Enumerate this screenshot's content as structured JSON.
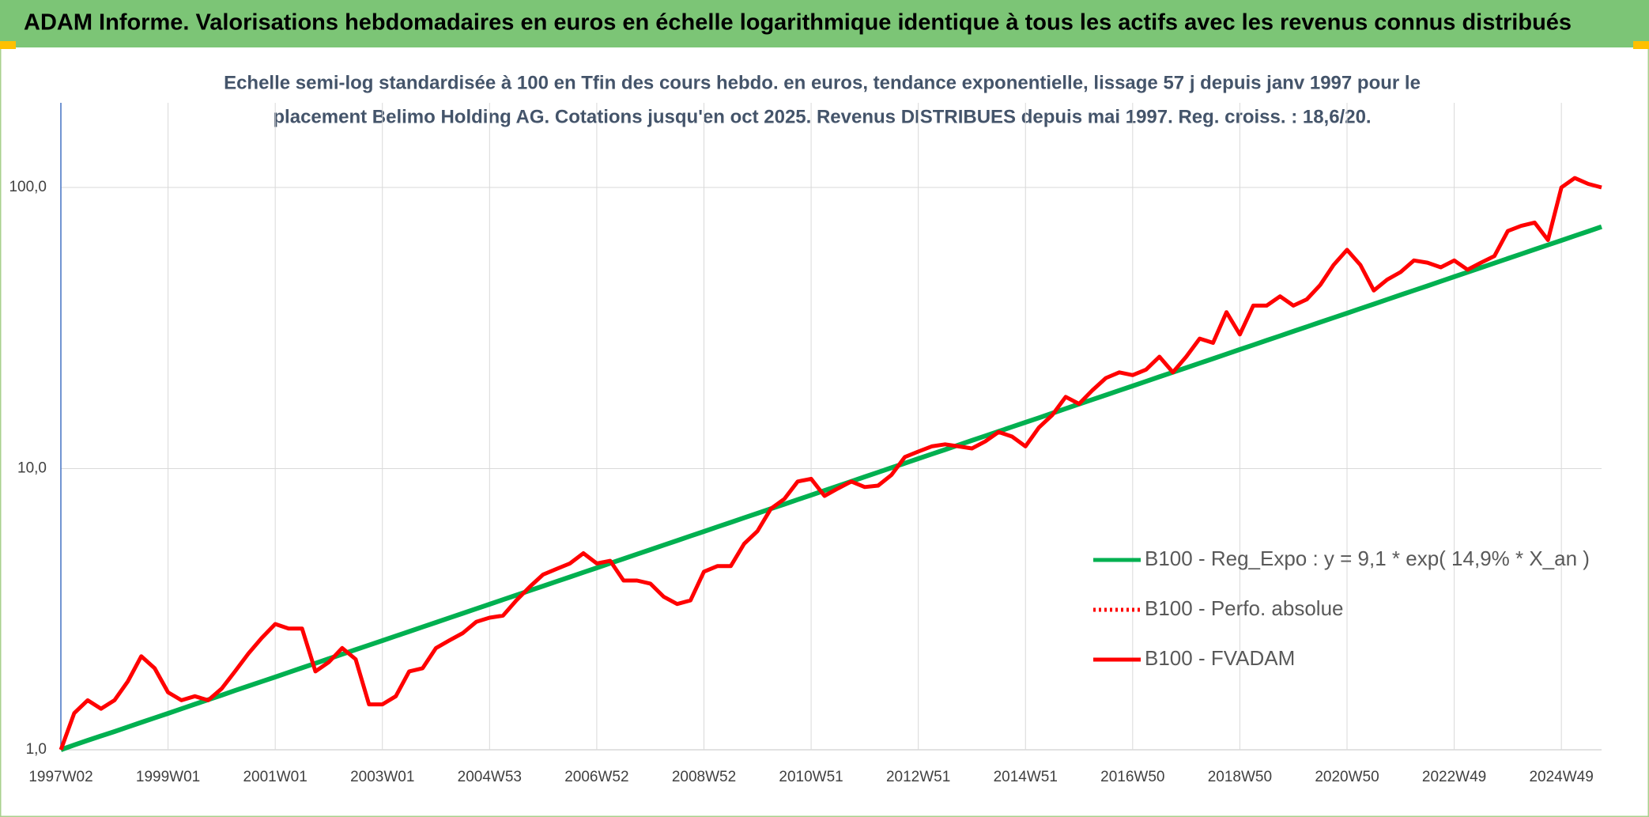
{
  "header": "ADAM Informe. Valorisations hebdomadaires en euros en échelle logarithmique identique à tous les actifs avec les revenus connus distribués",
  "chart_data": {
    "type": "line",
    "title": [
      "Echelle semi-log standardisée à 100 en Tfin des cours hebdo. en euros, tendance exponentielle, lissage 57 j depuis janv 1997 pour le",
      "placement Belimo Holding AG. Cotations jusqu'en oct 2025. Revenus DISTRIBUES depuis mai 1997. Reg. croiss. : 18,6/20."
    ],
    "categories": [
      "1997W02",
      null,
      null,
      null,
      null,
      null,
      null,
      null,
      "1999W01",
      null,
      null,
      null,
      null,
      null,
      null,
      null,
      "2001W01",
      null,
      null,
      null,
      null,
      null,
      null,
      null,
      "2003W01",
      null,
      null,
      null,
      null,
      null,
      null,
      null,
      "2004W53",
      null,
      null,
      null,
      null,
      null,
      null,
      null,
      "2006W52",
      null,
      null,
      null,
      null,
      null,
      null,
      null,
      "2008W52",
      null,
      null,
      null,
      null,
      null,
      null,
      null,
      "2010W51",
      null,
      null,
      null,
      null,
      null,
      null,
      null,
      "2012W51",
      null,
      null,
      null,
      null,
      null,
      null,
      null,
      "2014W51",
      null,
      null,
      null,
      null,
      null,
      null,
      null,
      "2016W50",
      null,
      null,
      null,
      null,
      null,
      null,
      null,
      "2018W50",
      null,
      null,
      null,
      null,
      null,
      null,
      null,
      "2020W50",
      null,
      null,
      null,
      null,
      null,
      null,
      null,
      "2022W49",
      null,
      null,
      null,
      null,
      null,
      null,
      null,
      "2024W49",
      null,
      null,
      null
    ],
    "series": [
      {
        "name": "B100 - Reg_Expo : y = 9,1 * exp( 14,9% *  X_an )",
        "color": "#00b050",
        "dash": "solid",
        "values": [
          1.0,
          1.04,
          1.08,
          1.12,
          1.161,
          1.205,
          1.251,
          1.298,
          1.347,
          1.399,
          1.452,
          1.507,
          1.564,
          1.624,
          1.685,
          1.749,
          1.815,
          1.884,
          1.956,
          2.03,
          2.107,
          2.187,
          2.27,
          2.356,
          2.445,
          2.538,
          2.634,
          2.734,
          2.838,
          2.946,
          3.057,
          3.173,
          3.294,
          3.419,
          3.548,
          3.683,
          3.823,
          3.968,
          4.118,
          4.275,
          4.437,
          4.605,
          4.78,
          4.961,
          5.15,
          5.345,
          5.548,
          5.759,
          5.977,
          6.204,
          6.439,
          6.684,
          6.937,
          7.201,
          7.474,
          7.758,
          8.052,
          8.357,
          8.675,
          9.004,
          9.346,
          9.7,
          10.07,
          10.45,
          10.85,
          11.26,
          11.68,
          12.13,
          12.59,
          13.07,
          13.56,
          14.08,
          14.61,
          15.16,
          15.74,
          16.34,
          16.96,
          17.6,
          18.27,
          18.96,
          19.68,
          20.43,
          21.21,
          22.01,
          22.84,
          23.71,
          24.61,
          25.55,
          26.52,
          27.52,
          28.57,
          29.65,
          30.78,
          31.94,
          33.16,
          34.41,
          35.72,
          37.08,
          38.48,
          39.94,
          41.46,
          43.03,
          44.66,
          46.36,
          48.12,
          49.94,
          51.84,
          53.8,
          55.85,
          57.97,
          60.17,
          62.45,
          64.82,
          67.28,
          69.83,
          72.48
        ]
      },
      {
        "name": "B100 - Perfo. absolue",
        "color": "#ff0000",
        "dash": "dotted"
      },
      {
        "name": "B100 - FVADAM",
        "color": "#ff0000",
        "dash": "solid",
        "values": [
          1.0,
          1.35,
          1.5,
          1.4,
          1.5,
          1.75,
          2.15,
          1.95,
          1.6,
          1.5,
          1.55,
          1.5,
          1.65,
          1.9,
          2.2,
          2.5,
          2.8,
          2.7,
          2.7,
          1.9,
          2.05,
          2.3,
          2.1,
          1.45,
          1.45,
          1.55,
          1.9,
          1.95,
          2.3,
          2.45,
          2.6,
          2.85,
          2.95,
          3.0,
          3.4,
          3.8,
          4.2,
          4.4,
          4.6,
          5.0,
          4.6,
          4.7,
          4.0,
          4.0,
          3.9,
          3.5,
          3.3,
          3.4,
          4.3,
          4.5,
          4.5,
          5.4,
          6.0,
          7.2,
          7.8,
          9.0,
          9.2,
          8.0,
          8.5,
          9.0,
          8.6,
          8.7,
          9.5,
          11.0,
          11.5,
          12.0,
          12.2,
          12.0,
          11.8,
          12.5,
          13.5,
          13.0,
          12.0,
          14.0,
          15.5,
          18.0,
          17.0,
          19.0,
          21.0,
          22.0,
          21.5,
          22.5,
          25.0,
          22.0,
          25.0,
          29.0,
          28.0,
          36.0,
          30.0,
          38.0,
          38.0,
          41.0,
          38.0,
          40.0,
          45.0,
          53.0,
          60.0,
          53.0,
          43.0,
          47.0,
          50.0,
          55.0,
          54.0,
          52.0,
          55.0,
          51.0,
          54.0,
          57.0,
          70.0,
          73.0,
          75.0,
          65.0,
          100.0,
          108.0,
          103.0,
          100.0
        ]
      }
    ],
    "ylim": [
      1,
      200
    ],
    "log_y": true,
    "yticks": [
      {
        "value": 1,
        "label": "1,0"
      },
      {
        "value": 10,
        "label": "10,0"
      },
      {
        "value": 100,
        "label": "100,0"
      }
    ],
    "grid": true,
    "legend": "lower right"
  }
}
